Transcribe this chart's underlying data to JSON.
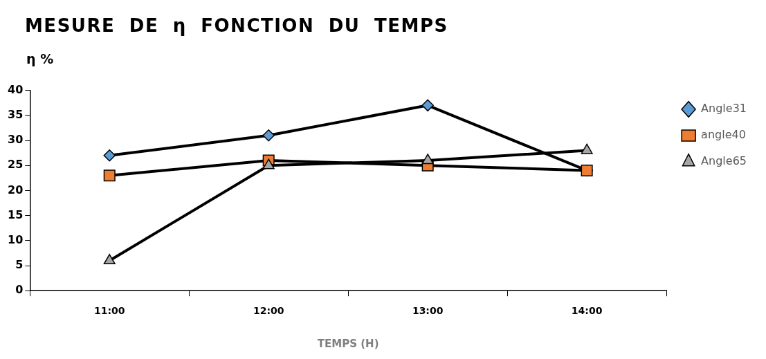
{
  "chart_data": {
    "type": "line",
    "title": "MESURE DE η FONCTION DU TEMPS",
    "ylabel": "η %",
    "xlabel": "TEMPS (H)",
    "categories": [
      "11:00",
      "12:00",
      "13:00",
      "14:00"
    ],
    "series": [
      {
        "name": "Angle31",
        "color": "#5b9bd5",
        "marker": "diamond",
        "values": [
          27,
          31,
          37,
          24
        ]
      },
      {
        "name": "angle40",
        "color": "#ed7d31",
        "marker": "square",
        "values": [
          23,
          26,
          25,
          24
        ]
      },
      {
        "name": "Angle65",
        "color": "#a5a5a5",
        "marker": "triangle",
        "values": [
          6,
          25,
          26,
          28
        ]
      }
    ],
    "ylim": [
      0,
      40
    ],
    "yticks": [
      0,
      5,
      10,
      15,
      20,
      25,
      30,
      35,
      40
    ],
    "grid": false,
    "legend": "top right",
    "line_style": "solid"
  }
}
